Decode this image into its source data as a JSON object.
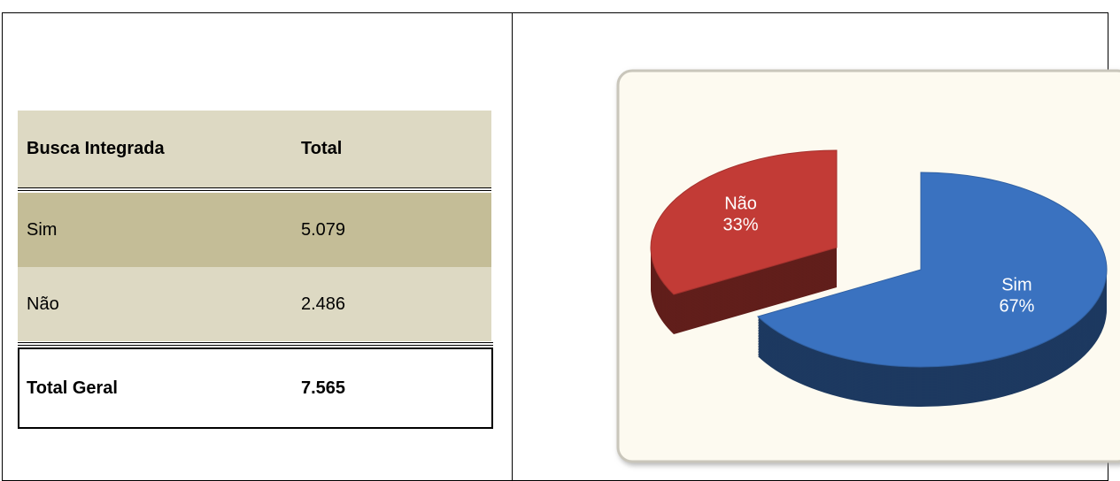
{
  "table": {
    "header": [
      "Busca Integrada",
      "Total"
    ],
    "rows": [
      [
        "Sim",
        "5.079"
      ],
      [
        "Não",
        "2.486"
      ]
    ],
    "total": [
      "Total Geral",
      "7.565"
    ]
  },
  "chart_data": {
    "type": "pie",
    "categories": [
      "Sim",
      "Não"
    ],
    "values": [
      67,
      33
    ],
    "value_labels": [
      "67%",
      "33%"
    ],
    "colors": [
      "#3a72c0",
      "#c23b36"
    ]
  }
}
